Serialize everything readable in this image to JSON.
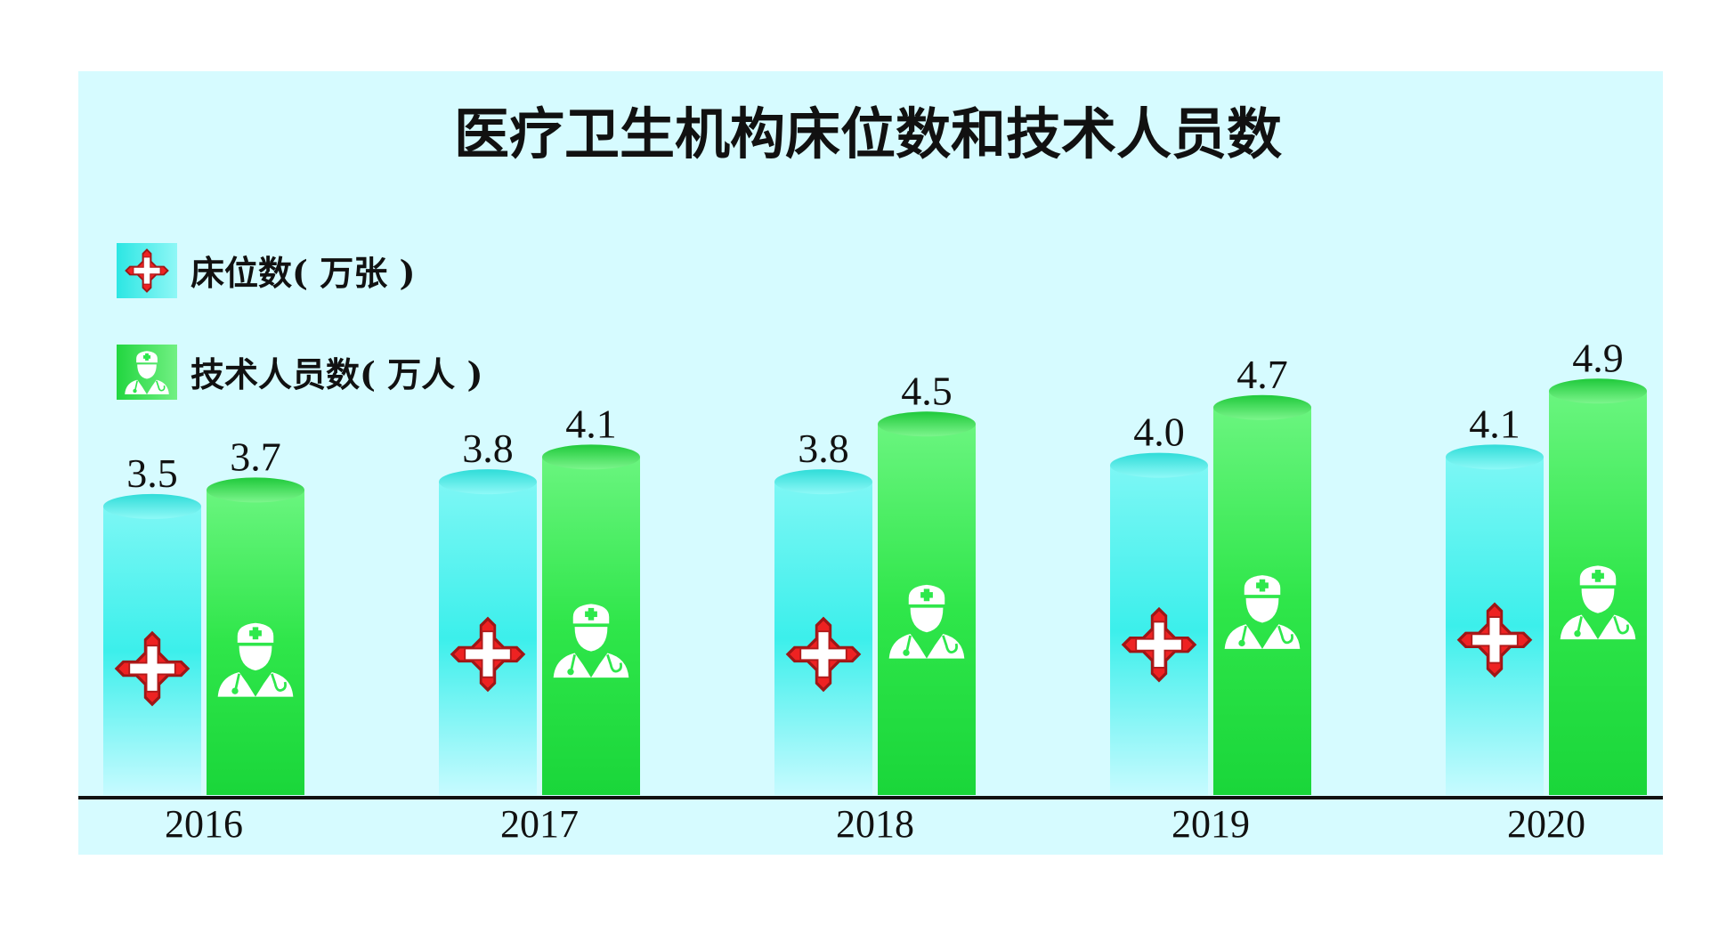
{
  "chart_data": {
    "type": "bar",
    "title": "医疗卫生机构床位数和技术人员数",
    "categories": [
      "2016",
      "2017",
      "2018",
      "2019",
      "2020"
    ],
    "series": [
      {
        "name": "床位数( 万张 )",
        "values": [
          3.5,
          3.8,
          3.8,
          4.0,
          4.1
        ],
        "color": "#3ff0ec",
        "icon": "medical-cross-icon"
      },
      {
        "name": "技术人员数( 万人 )",
        "values": [
          3.7,
          4.1,
          4.5,
          4.7,
          4.9
        ],
        "color": "#2ee84c",
        "icon": "doctor-icon"
      }
    ],
    "xlabel": "",
    "ylabel": "",
    "grid": false,
    "legend_position": "top-left"
  }
}
